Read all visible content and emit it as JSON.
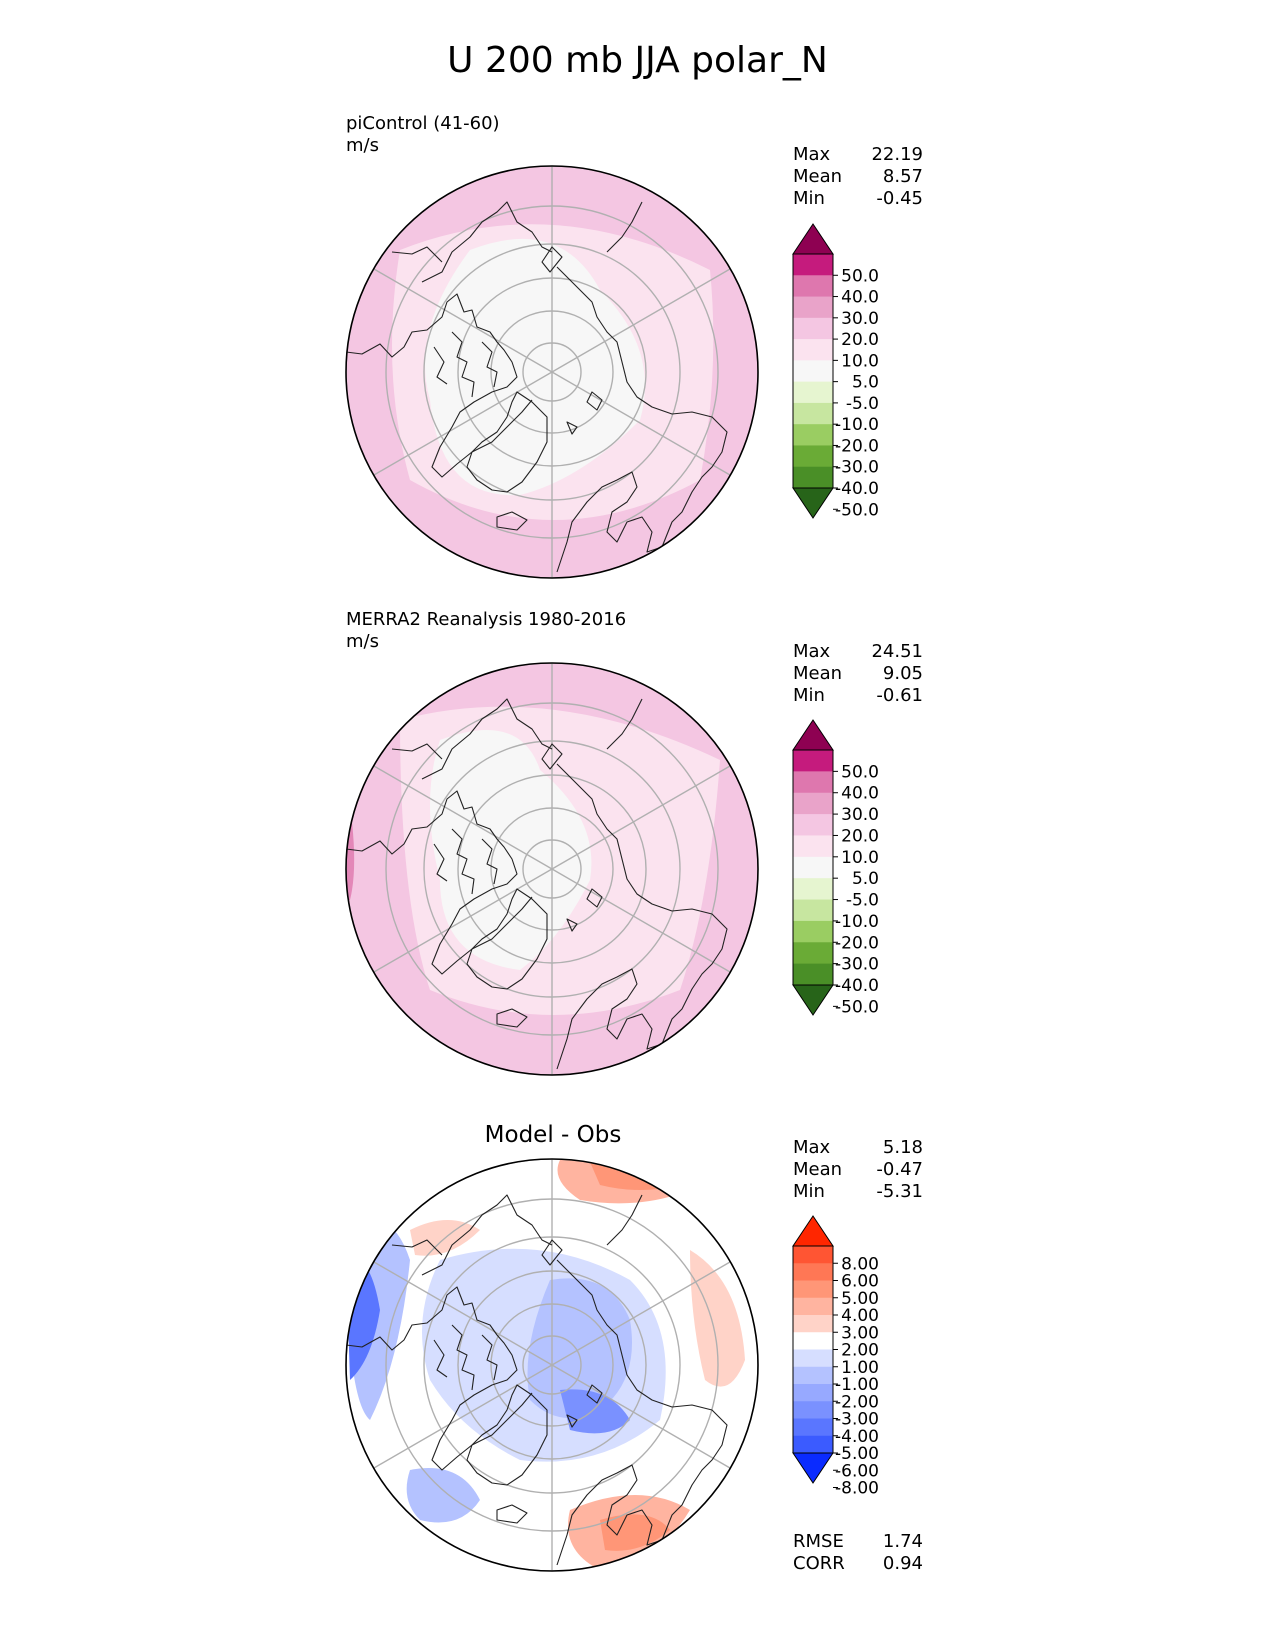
{
  "title": "U 200 mb JJA polar_N",
  "panels": [
    {
      "id": "model",
      "title_lines": [
        "piControl (41-60)",
        "m/s"
      ],
      "stats": [
        {
          "label": "Max",
          "value": "22.19"
        },
        {
          "label": "Mean",
          "value": "8.57"
        },
        {
          "label": "Min",
          "value": "-0.45"
        }
      ],
      "colorbar_labels": [
        "50.0",
        "40.0",
        "30.0",
        "20.0",
        "10.0",
        "5.0",
        "-5.0",
        "-10.0",
        "-20.0",
        "-30.0",
        "-40.0",
        "-50.0"
      ]
    },
    {
      "id": "obs",
      "title_lines": [
        "MERRA2 Reanalysis 1980-2016",
        "m/s"
      ],
      "stats": [
        {
          "label": "Max",
          "value": "24.51"
        },
        {
          "label": "Mean",
          "value": "9.05"
        },
        {
          "label": "Min",
          "value": "-0.61"
        }
      ],
      "colorbar_labels": [
        "50.0",
        "40.0",
        "30.0",
        "20.0",
        "10.0",
        "5.0",
        "-5.0",
        "-10.0",
        "-20.0",
        "-30.0",
        "-40.0",
        "-50.0"
      ]
    },
    {
      "id": "diff",
      "title_center": "Model - Obs",
      "stats": [
        {
          "label": "Max",
          "value": "5.18"
        },
        {
          "label": "Mean",
          "value": "-0.47"
        },
        {
          "label": "Min",
          "value": "-5.31"
        }
      ],
      "colorbar_labels": [
        "8.00",
        "6.00",
        "5.00",
        "4.00",
        "3.00",
        "2.00",
        "1.00",
        "-1.00",
        "-2.00",
        "-3.00",
        "-4.00",
        "-5.00",
        "-6.00",
        "-8.00"
      ],
      "extra_stats": [
        {
          "label": "RMSE",
          "value": "1.74"
        },
        {
          "label": "CORR",
          "value": "0.94"
        }
      ]
    }
  ],
  "colors": {
    "field_colors": [
      "#8e0152",
      "#c51b7d",
      "#de77ae",
      "#e9a3c9",
      "#f4c6e2",
      "#fbe3ef",
      "#f7f7f7",
      "#e6f5d0",
      "#c7e6a0",
      "#9acd62",
      "#6aab36",
      "#4a8f27",
      "#276419"
    ],
    "diff_colors": [
      "#ff2600",
      "#ff5533",
      "#ff7755",
      "#ff9677",
      "#ffb4a0",
      "#ffd3c8",
      "#ffffff",
      "#d6deff",
      "#b4c2ff",
      "#97a9ff",
      "#7a91ff",
      "#5a76ff",
      "#3b5bff",
      "#0a2bff"
    ]
  }
}
